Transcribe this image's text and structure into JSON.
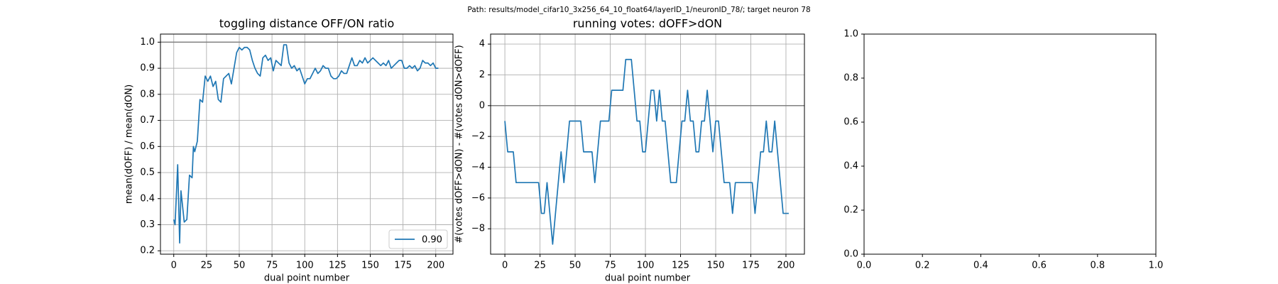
{
  "title": "Path: results/model_cifar10_3x256_64_10_float64/layerID_1/neuronID_78/; target neuron 78",
  "chart_data": [
    {
      "type": "line",
      "title": "toggling distance OFF/ON ratio",
      "x_label": "dual point number",
      "y_label": "mean(dOFF) / mean(dON)",
      "x": [
        0,
        1,
        3,
        4.5,
        5.5,
        8,
        10,
        12,
        14,
        15,
        16,
        18,
        20,
        22,
        24,
        26,
        28,
        30,
        32,
        34,
        36,
        38,
        40,
        42,
        44,
        46,
        48,
        50,
        52,
        54,
        56,
        58,
        60,
        62,
        64,
        66,
        68,
        70,
        72,
        74,
        76,
        78,
        80,
        82,
        84,
        86,
        88,
        90,
        92,
        94,
        96,
        98,
        100,
        102,
        104,
        106,
        108,
        110,
        112,
        114,
        116,
        118,
        120,
        122,
        124,
        126,
        128,
        130,
        132,
        134,
        136,
        138,
        140,
        142,
        144,
        146,
        148,
        150,
        152,
        154,
        156,
        158,
        160,
        162,
        164,
        166,
        168,
        170,
        172,
        174,
        176,
        178,
        180,
        182,
        184,
        186,
        188,
        190,
        192,
        194,
        196,
        198,
        200,
        202
      ],
      "series": [
        {
          "name": "0.90",
          "color": "#1f77b4",
          "values": [
            0.32,
            0.3,
            0.53,
            0.23,
            0.43,
            0.31,
            0.32,
            0.49,
            0.48,
            0.6,
            0.58,
            0.62,
            0.78,
            0.77,
            0.87,
            0.85,
            0.87,
            0.83,
            0.85,
            0.78,
            0.77,
            0.86,
            0.87,
            0.88,
            0.84,
            0.9,
            0.96,
            0.98,
            0.97,
            0.98,
            0.98,
            0.97,
            0.93,
            0.9,
            0.88,
            0.87,
            0.94,
            0.95,
            0.93,
            0.94,
            0.89,
            0.93,
            0.92,
            0.91,
            0.99,
            0.99,
            0.92,
            0.9,
            0.91,
            0.89,
            0.9,
            0.87,
            0.84,
            0.86,
            0.86,
            0.88,
            0.9,
            0.88,
            0.89,
            0.91,
            0.9,
            0.9,
            0.87,
            0.86,
            0.86,
            0.87,
            0.89,
            0.88,
            0.88,
            0.91,
            0.94,
            0.91,
            0.91,
            0.93,
            0.92,
            0.94,
            0.92,
            0.93,
            0.94,
            0.93,
            0.92,
            0.91,
            0.92,
            0.91,
            0.93,
            0.9,
            0.91,
            0.92,
            0.93,
            0.93,
            0.9,
            0.9,
            0.91,
            0.9,
            0.91,
            0.89,
            0.9,
            0.93,
            0.92,
            0.92,
            0.91,
            0.92,
            0.9,
            0.9
          ]
        }
      ],
      "hline": 1,
      "xlim": [
        -10.15,
        213.15
      ],
      "ylim": [
        0.187,
        1.031
      ],
      "xticks": [
        0,
        25,
        50,
        75,
        100,
        125,
        150,
        175,
        200
      ],
      "yticks": [
        0.2,
        0.3,
        0.4,
        0.5,
        0.6,
        0.7,
        0.8,
        0.9,
        {
          "value": 1,
          "label": "1.0"
        }
      ],
      "grid": true,
      "legend": "lower right"
    },
    {
      "type": "line",
      "title": "running votes: dOFF>dON",
      "x_label": "dual point number",
      "y_label": "#(votes dOFF>dON) - #(votes dON>dOFF)",
      "x": [
        0,
        2,
        4,
        6,
        8,
        10,
        12,
        14,
        16,
        18,
        20,
        22,
        24,
        26,
        28,
        30,
        32,
        34,
        36,
        38,
        40,
        42,
        44,
        46,
        48,
        50,
        52,
        54,
        56,
        58,
        60,
        62,
        64,
        66,
        68,
        70,
        72,
        74,
        76,
        78,
        80,
        82,
        84,
        86,
        88,
        90,
        92,
        94,
        96,
        98,
        100,
        102,
        104,
        106,
        108,
        110,
        112,
        114,
        116,
        118,
        120,
        122,
        124,
        126,
        128,
        130,
        132,
        134,
        136,
        138,
        140,
        142,
        144,
        146,
        148,
        150,
        152,
        154,
        156,
        158,
        160,
        162,
        164,
        166,
        168,
        170,
        172,
        174,
        176,
        178,
        180,
        182,
        184,
        186,
        188,
        190,
        192,
        194,
        196,
        198,
        200,
        202
      ],
      "series": [
        {
          "color": "#1f77b4",
          "values": [
            -1,
            -3,
            -3,
            -3,
            -5,
            -5,
            -5,
            -5,
            -5,
            -5,
            -5,
            -5,
            -5,
            -7,
            -7,
            -5,
            -7,
            -9,
            -7,
            -5,
            -3,
            -5,
            -3,
            -1,
            -1,
            -1,
            -1,
            -1,
            -3,
            -3,
            -3,
            -3,
            -5,
            -3,
            -1,
            -1,
            -1,
            -1,
            1,
            1,
            1,
            1,
            1,
            3,
            3,
            3,
            1,
            -1,
            -1,
            -3,
            -3,
            -1,
            1,
            1,
            -1,
            1,
            -1,
            -1,
            -3,
            -5,
            -5,
            -5,
            -3,
            -1,
            -1,
            1,
            -1,
            -1,
            -3,
            -3,
            -1,
            -1,
            1,
            -1,
            -3,
            -1,
            -1,
            -3,
            -5,
            -5,
            -5,
            -7,
            -5,
            -5,
            -5,
            -5,
            -5,
            -5,
            -5,
            -7,
            -5,
            -3,
            -3,
            -1,
            -3,
            -3,
            -1,
            -3,
            -5,
            -7,
            -7,
            -7
          ]
        }
      ],
      "hline": 0,
      "xlim": [
        -10.15,
        213.15
      ],
      "ylim": [
        -9.65,
        4.65
      ],
      "xticks": [
        0,
        25,
        50,
        75,
        100,
        125,
        150,
        175,
        200
      ],
      "yticks": [
        {
          "value": -8,
          "label": "−8"
        },
        {
          "value": -6,
          "label": "−6"
        },
        {
          "value": -4,
          "label": "−4"
        },
        {
          "value": -2,
          "label": "−2"
        },
        0,
        2,
        4
      ],
      "grid": true
    },
    {
      "type": "line",
      "xlim": [
        0,
        1
      ],
      "ylim": [
        0,
        1
      ],
      "xticks": [
        {
          "value": 0,
          "label": "0.0"
        },
        0.2,
        0.4,
        0.6,
        0.8,
        {
          "value": 1,
          "label": "1.0"
        }
      ],
      "yticks": [
        {
          "value": 0,
          "label": "0.0"
        },
        0.2,
        0.4,
        0.6,
        0.8,
        {
          "value": 1,
          "label": "1.0"
        }
      ],
      "grid": false
    }
  ]
}
